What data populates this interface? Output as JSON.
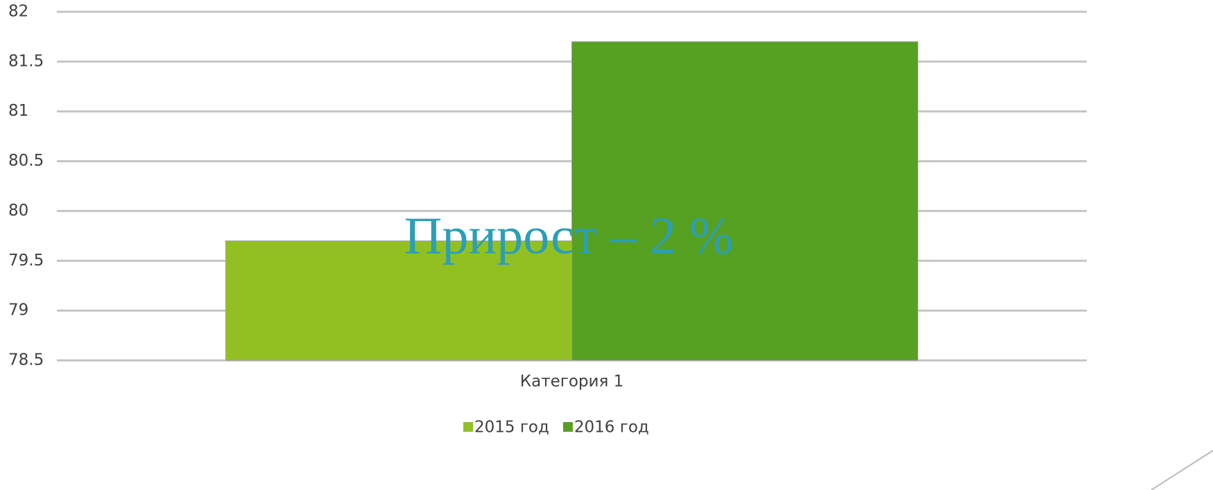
{
  "chart_data": {
    "type": "bar",
    "categories": [
      "Категория 1"
    ],
    "series": [
      {
        "name": "2015 год",
        "color": "#92c023",
        "values": [
          79.7
        ]
      },
      {
        "name": "2016 год",
        "color": "#56a022",
        "values": [
          81.7
        ]
      }
    ],
    "ylim": [
      78.5,
      82
    ],
    "yticks": [
      78.5,
      79,
      79.5,
      80,
      80.5,
      81,
      81.5,
      82
    ],
    "grid": true,
    "legend": "bottom",
    "annotation": "Прирост – 2 %"
  }
}
